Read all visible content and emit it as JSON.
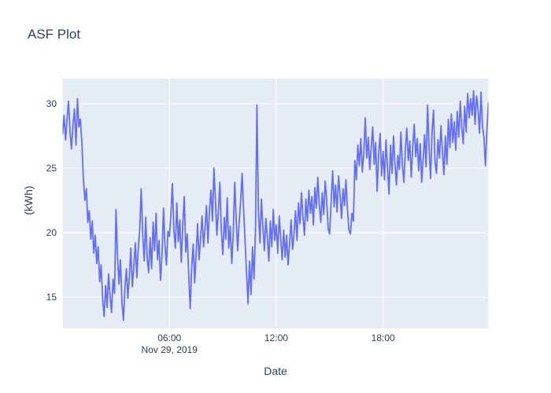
{
  "colors": {
    "line": "#636efa",
    "plot_background": "#e5ecf6",
    "grid": "#ffffff",
    "text": "#2a3f5f",
    "paper_background": "#ffffff"
  },
  "chart_data": {
    "type": "line",
    "title": "ASF Plot",
    "xlabel": "Date",
    "ylabel": "(kWh)",
    "legend_position": "none",
    "grid": true,
    "x_axis": {
      "start_datetime": "Nov 29, 2019 00:00",
      "interval_minutes": 5,
      "range_minutes": [
        0,
        1435
      ],
      "ticks": [
        {
          "minutes": 360,
          "label": "06:00",
          "sublabel": "Nov 29, 2019"
        },
        {
          "minutes": 720,
          "label": "12:00",
          "sublabel": ""
        },
        {
          "minutes": 1080,
          "label": "18:00",
          "sublabel": ""
        }
      ]
    },
    "y_axis": {
      "range": [
        12.56,
        31.95
      ],
      "ticks": [
        15,
        20,
        25,
        30
      ]
    },
    "series": [
      {
        "name": "(kWh)",
        "color": "#636efa",
        "values": [
          27.6,
          29.1,
          27.2,
          28.8,
          30.2,
          27.9,
          26.5,
          28.4,
          29.6,
          26.8,
          30.4,
          28.2,
          28.8,
          27.0,
          24.2,
          22.5,
          23.4,
          20.8,
          21.7,
          19.5,
          20.9,
          18.4,
          19.8,
          17.6,
          18.9,
          16.2,
          17.5,
          14.8,
          13.5,
          15.9,
          14.2,
          16.8,
          15.1,
          13.8,
          16.4,
          15.3,
          21.8,
          18.3,
          16.0,
          17.9,
          14.6,
          13.2,
          15.7,
          17.2,
          14.9,
          16.6,
          18.8,
          15.8,
          17.4,
          19.2,
          16.5,
          18.7,
          20.3,
          23.4,
          19.9,
          17.8,
          21.2,
          18.1,
          16.9,
          19.6,
          17.2,
          20.8,
          18.6,
          21.5,
          17.9,
          19.4,
          16.3,
          18.2,
          21.9,
          19.0,
          17.5,
          20.1,
          19.7,
          21.4,
          23.8,
          20.2,
          18.8,
          22.3,
          19.3,
          21.0,
          17.7,
          20.6,
          22.8,
          18.5,
          19.9,
          16.8,
          14.1,
          17.3,
          19.1,
          16.1,
          18.4,
          20.7,
          17.9,
          19.5,
          21.3,
          18.9,
          20.4,
          22.1,
          19.2,
          21.8,
          23.3,
          20.9,
          25.0,
          22.5,
          19.8,
          21.6,
          23.9,
          20.1,
          18.3,
          21.2,
          19.5,
          22.7,
          18.8,
          20.5,
          17.6,
          19.9,
          23.9,
          21.1,
          18.6,
          20.8,
          22.4,
          24.6,
          21.7,
          19.3,
          16.9,
          14.5,
          17.8,
          15.2,
          18.9,
          16.4,
          20.3,
          29.9,
          21.6,
          19.2,
          22.6,
          20.4,
          18.6,
          21.1,
          19.7,
          17.8,
          20.9,
          18.9,
          21.8,
          19.4,
          20.6,
          18.4,
          21.3,
          19.6,
          17.9,
          20.2,
          18.1,
          19.8,
          17.5,
          19.2,
          21.0,
          18.7,
          19.9,
          21.7,
          19.4,
          22.3,
          20.7,
          23.1,
          21.2,
          19.8,
          22.6,
          20.9,
          23.3,
          21.5,
          22.8,
          20.6,
          23.5,
          21.9,
          24.3,
          22.2,
          20.8,
          23.1,
          21.4,
          24.0,
          22.5,
          20.3,
          19.9,
          22.4,
          24.8,
          22.0,
          23.7,
          21.6,
          24.4,
          22.9,
          21.1,
          23.4,
          22.1,
          24.1,
          21.8,
          20.2,
          19.9,
          21.5,
          20.9,
          25.6,
          24.1,
          26.8,
          25.2,
          27.3,
          24.7,
          26.2,
          28.9,
          25.8,
          27.4,
          24.9,
          26.6,
          28.2,
          25.3,
          27.0,
          23.2,
          26.1,
          27.7,
          24.4,
          26.3,
          24.1,
          27.2,
          25.0,
          23.0,
          26.8,
          24.6,
          27.5,
          25.4,
          23.7,
          26.0,
          24.9,
          27.8,
          25.2,
          23.9,
          26.4,
          28.1,
          25.6,
          27.1,
          24.3,
          26.7,
          28.4,
          25.9,
          27.3,
          24.8,
          26.9,
          23.9,
          25.7,
          27.6,
          25.1,
          29.9,
          26.5,
          24.2,
          27.9,
          29.5,
          25.5,
          24.6,
          27.2,
          25.8,
          28.3,
          26.2,
          24.5,
          27.5,
          25.3,
          28.8,
          26.6,
          29.2,
          27.0,
          28.6,
          26.4,
          29.4,
          27.4,
          30.2,
          28.1,
          26.9,
          29.8,
          27.8,
          30.8,
          28.9,
          30.4,
          29.1,
          31.0,
          28.4,
          30.6,
          29.6,
          27.7,
          30.9,
          28.2,
          27.4,
          25.2,
          28.0,
          30.1
        ]
      }
    ]
  }
}
